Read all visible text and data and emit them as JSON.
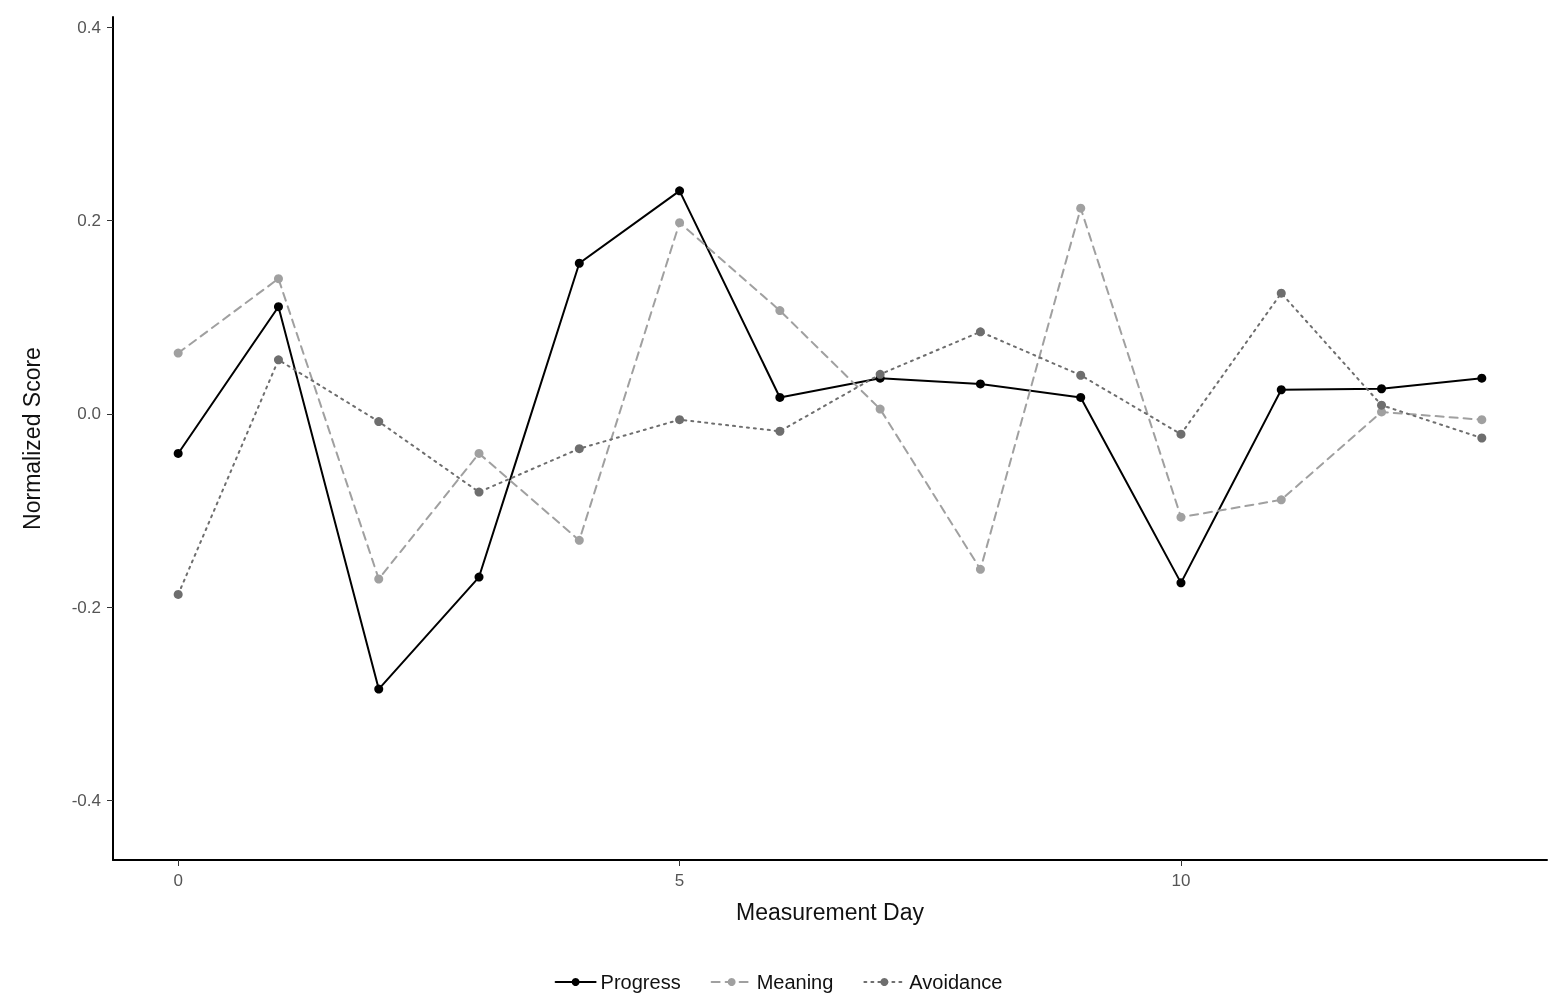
{
  "chart_data": {
    "type": "line",
    "xlabel": "Measurement Day",
    "ylabel": "Normalized Score",
    "x": [
      0,
      1,
      2,
      3,
      4,
      5,
      6,
      7,
      8,
      9,
      10,
      11,
      12,
      13
    ],
    "series": [
      {
        "name": "Progress",
        "color": "#000000",
        "line_style": "solid",
        "values": [
          -0.041,
          0.111,
          -0.285,
          -0.169,
          0.156,
          0.231,
          0.017,
          0.037,
          0.031,
          0.017,
          -0.175,
          0.025,
          0.026,
          0.037
        ]
      },
      {
        "name": "Meaning",
        "color": "#a0a0a0",
        "line_style": "dashed",
        "values": [
          0.063,
          0.14,
          -0.171,
          -0.041,
          -0.131,
          0.198,
          0.107,
          0.005,
          -0.161,
          0.213,
          -0.107,
          -0.089,
          0.002,
          -0.006
        ]
      },
      {
        "name": "Avoidance",
        "color": "#6e6e6e",
        "line_style": "dotted",
        "values": [
          -0.187,
          0.056,
          -0.008,
          -0.081,
          -0.036,
          -0.006,
          -0.018,
          0.041,
          0.085,
          0.04,
          -0.021,
          0.125,
          0.009,
          -0.025
        ]
      }
    ],
    "xlim": [
      -0.65,
      13.65
    ],
    "xticks": [
      0,
      5,
      10
    ],
    "ylim": [
      -0.462,
      0.411
    ],
    "yticks": [
      {
        "value": -0.4,
        "label": "-0.4"
      },
      {
        "value": -0.2,
        "label": "-0.2"
      },
      {
        "value": 0,
        "label": "0.0"
      },
      {
        "value": 0.2,
        "label": "0.2"
      },
      {
        "value": 0.4,
        "label": "0.4"
      }
    ],
    "marker": "circle",
    "legend": "bottom"
  }
}
